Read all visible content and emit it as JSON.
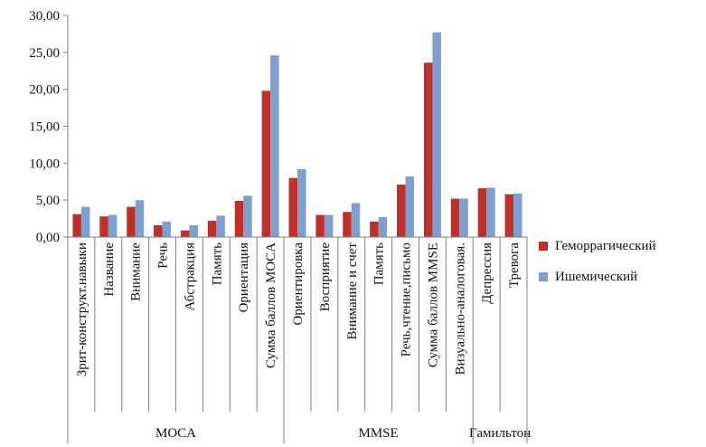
{
  "chart_data": {
    "type": "bar",
    "title": "",
    "xlabel": "",
    "ylabel": "",
    "ylim": [
      0,
      30
    ],
    "ytick_step": 5,
    "ytick_labels": [
      "0,00",
      "5,00",
      "10,00",
      "15,00",
      "20,00",
      "25,00",
      "30,00"
    ],
    "grid": false,
    "legend_position": "right",
    "categories": [
      "Зрит-конструкт.навыки",
      "Название",
      "Внимание",
      "Речь",
      "Абстракция",
      "Память",
      "Ориентация",
      "Сумма баллов MOCA",
      "Ориентировка",
      "Восприятие",
      "Внимание и счет",
      "Память",
      "Речь,чтение,письмо",
      "Сумма баллов MMSE",
      "Визуально-аналоговая.",
      "Депрессия",
      "Тревога"
    ],
    "groups": [
      {
        "label": "MOCA",
        "start": 0,
        "end": 7
      },
      {
        "label": "MMSE",
        "start": 8,
        "end": 14
      },
      {
        "label": "Гамильтон",
        "start": 15,
        "end": 16
      }
    ],
    "series": [
      {
        "name": "Геморрагический",
        "color": "#c0302a",
        "values": [
          3.1,
          2.8,
          4.1,
          1.6,
          0.9,
          2.2,
          4.9,
          19.8,
          8.0,
          3.0,
          3.4,
          2.1,
          7.1,
          23.6,
          5.2,
          6.6,
          5.8
        ]
      },
      {
        "name": "Ишемический",
        "color": "#7f9fcf",
        "values": [
          4.1,
          3.0,
          5.0,
          2.1,
          1.6,
          2.9,
          5.6,
          24.6,
          9.2,
          3.0,
          4.6,
          2.7,
          8.2,
          27.7,
          5.2,
          6.7,
          5.9
        ]
      }
    ]
  }
}
